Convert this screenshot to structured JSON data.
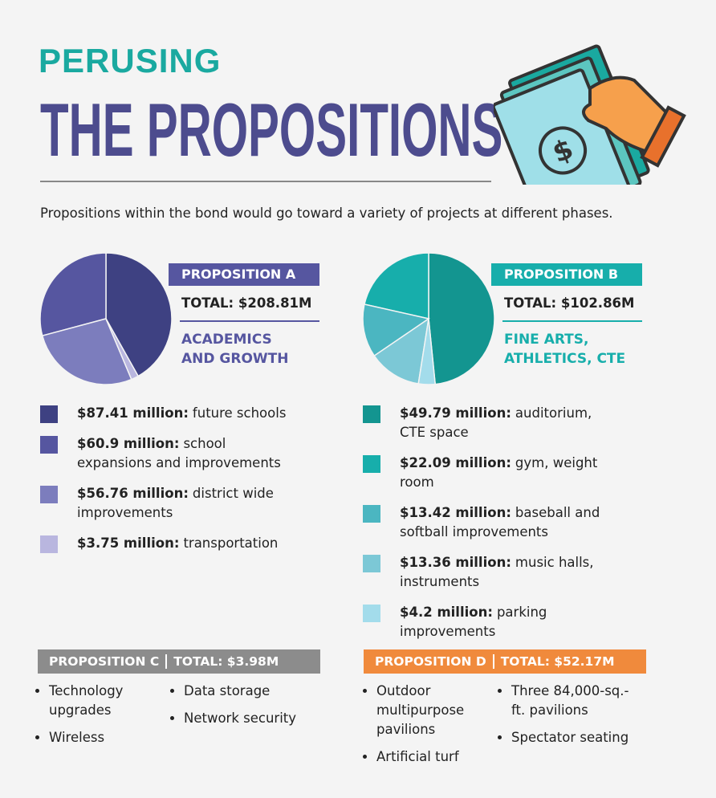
{
  "header": {
    "kicker": "PERUSING",
    "title": "THE PROPOSITIONS"
  },
  "intro": "Propositions within the bond would go toward a variety of projects at different phases.",
  "chart_data": [
    {
      "type": "pie",
      "title": "PROPOSITION A",
      "total": "TOTAL: $208.81M",
      "subtitle": "ACADEMICS AND GROWTH",
      "categories": [
        "future schools",
        "school expansions and improvements",
        "district wide improvements",
        "transportation"
      ],
      "values": [
        87.41,
        60.9,
        56.76,
        3.75
      ],
      "value_labels": [
        "$87.41 million:",
        "$60.9 million:",
        "$56.76 million:",
        "$3.75 million:"
      ],
      "colors": [
        "#3e4182",
        "#5656a0",
        "#7c7dbd",
        "#b9b6df"
      ],
      "accent": "#5656a0"
    },
    {
      "type": "pie",
      "title": "PROPOSITION B",
      "total": "TOTAL: $102.86M",
      "subtitle": "FINE ARTS, ATHLETICS, CTE",
      "categories": [
        "auditorium, CTE space",
        "gym, weight room",
        "baseball and softball improvements",
        "music halls, instruments",
        "parking improvements"
      ],
      "values": [
        49.79,
        22.09,
        13.42,
        13.36,
        4.2
      ],
      "value_labels": [
        "$49.79 million:",
        "$22.09 million:",
        "$13.42 million:",
        "$13.36 million:",
        "$4.2 million:"
      ],
      "colors": [
        "#139590",
        "#17aeab",
        "#4bb6c1",
        "#7cc8d6",
        "#a3dceb"
      ],
      "accent": "#17aeab"
    }
  ],
  "notes": [
    {
      "title": "PROPOSITION C",
      "total": "TOTAL: $3.98M",
      "color": "#8c8c8c",
      "columns": [
        [
          "Technology upgrades",
          "Wireless"
        ],
        [
          "Data storage",
          "Network security"
        ]
      ]
    },
    {
      "title": "PROPOSITION D",
      "total": "TOTAL: $52.17M",
      "color": "#f08a3c",
      "columns": [
        [
          "Outdoor multipurpose pavilions",
          "Artificial turf"
        ],
        [
          "Three 84,000-sq.-ft. pavilions",
          "Spectator seating"
        ]
      ]
    }
  ]
}
